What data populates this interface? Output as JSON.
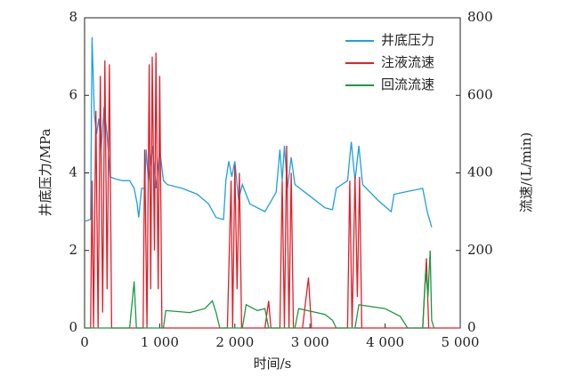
{
  "chart_data": {
    "type": "line",
    "xlabel": "时间/s",
    "ylabel": "井底压力/MPa",
    "y2label": "流速/(L/min)",
    "xlim": [
      0,
      5000
    ],
    "xticks": [
      0,
      {
        "value": 1000,
        "label": "1 000"
      },
      {
        "value": 2000,
        "label": "2 000"
      },
      {
        "value": 3000,
        "label": "3 000"
      },
      {
        "value": 4000,
        "label": "4 000"
      },
      {
        "value": 5000,
        "label": "5 000"
      }
    ],
    "ylim": [
      0,
      8
    ],
    "yticks": [
      0,
      2,
      4,
      6,
      8
    ],
    "y2lim": [
      0,
      800
    ],
    "y2ticks": [
      0,
      200,
      400,
      600,
      800
    ],
    "legend": "upper right",
    "series": [
      {
        "name": "井底压力",
        "color": "#1ea0e0",
        "x": [
          0,
          80,
          100,
          130,
          160,
          190,
          220,
          260,
          300,
          340,
          400,
          500,
          600,
          660,
          700,
          720,
          760,
          800,
          820,
          850,
          900,
          950,
          1000,
          1050,
          1100,
          1300,
          1500,
          1650,
          1750,
          1850,
          1880,
          1920,
          1960,
          2000,
          2050,
          2100,
          2200,
          2400,
          2550,
          2600,
          2630,
          2660,
          2700,
          2750,
          2800,
          3000,
          3200,
          3300,
          3350,
          3500,
          3550,
          3600,
          3650,
          3700,
          3900,
          4080,
          4120,
          4500,
          4560,
          4620
        ],
        "values": [
          2.75,
          2.8,
          7.5,
          5.5,
          5.0,
          5.4,
          4.6,
          5.7,
          5.0,
          3.9,
          3.85,
          3.8,
          3.8,
          3.6,
          3.2,
          2.85,
          3.6,
          3.6,
          4.6,
          3.8,
          4.7,
          3.6,
          4.6,
          3.8,
          3.7,
          3.6,
          3.45,
          3.2,
          2.85,
          2.8,
          3.8,
          4.3,
          3.9,
          4.3,
          3.3,
          3.7,
          3.2,
          3.0,
          3.5,
          4.6,
          3.8,
          4.7,
          3.6,
          4.4,
          3.7,
          3.4,
          3.1,
          3.05,
          3.6,
          3.8,
          4.8,
          3.8,
          4.7,
          3.7,
          3.3,
          3.0,
          3.45,
          3.6,
          3.0,
          2.6
        ]
      },
      {
        "name": "注液流速",
        "color": "#e0202a",
        "axis": "y2",
        "x": [
          0,
          80,
          100,
          120,
          150,
          180,
          210,
          240,
          270,
          300,
          330,
          360,
          400,
          750,
          780,
          800,
          830,
          860,
          880,
          900,
          930,
          950,
          980,
          1000,
          1030,
          1100,
          1900,
          1950,
          1970,
          2000,
          2030,
          2060,
          2090,
          2200,
          2400,
          2450,
          2480,
          2600,
          2630,
          2660,
          2690,
          2720,
          2750,
          2780,
          2900,
          2980,
          3020,
          3500,
          3530,
          3560,
          3600,
          3630,
          3660,
          3690,
          4500,
          4550,
          4580,
          5000
        ],
        "values": [
          0,
          0,
          380,
          0,
          560,
          0,
          650,
          40,
          690,
          100,
          680,
          0,
          0,
          0,
          0,
          460,
          0,
          680,
          100,
          700,
          200,
          710,
          100,
          650,
          0,
          0,
          0,
          380,
          0,
          420,
          100,
          400,
          0,
          0,
          0,
          70,
          0,
          0,
          380,
          0,
          470,
          0,
          400,
          0,
          0,
          130,
          0,
          0,
          380,
          0,
          390,
          80,
          390,
          0,
          0,
          180,
          0,
          0
        ]
      },
      {
        "name": "回流流速",
        "color": "#1a9a40",
        "axis": "y2",
        "x": [
          0,
          600,
          660,
          690,
          1050,
          1080,
          1400,
          1600,
          1700,
          1750,
          1800,
          2100,
          2150,
          2300,
          2400,
          2450,
          2800,
          2850,
          3200,
          3300,
          3350,
          3600,
          3650,
          4000,
          4200,
          4300,
          4500,
          4540,
          4570,
          4600,
          4620,
          4650
        ],
        "values": [
          0,
          0,
          120,
          0,
          0,
          45,
          40,
          50,
          70,
          40,
          0,
          0,
          60,
          45,
          50,
          0,
          0,
          50,
          35,
          20,
          0,
          0,
          60,
          50,
          30,
          0,
          0,
          150,
          80,
          200,
          20,
          0
        ]
      }
    ]
  }
}
